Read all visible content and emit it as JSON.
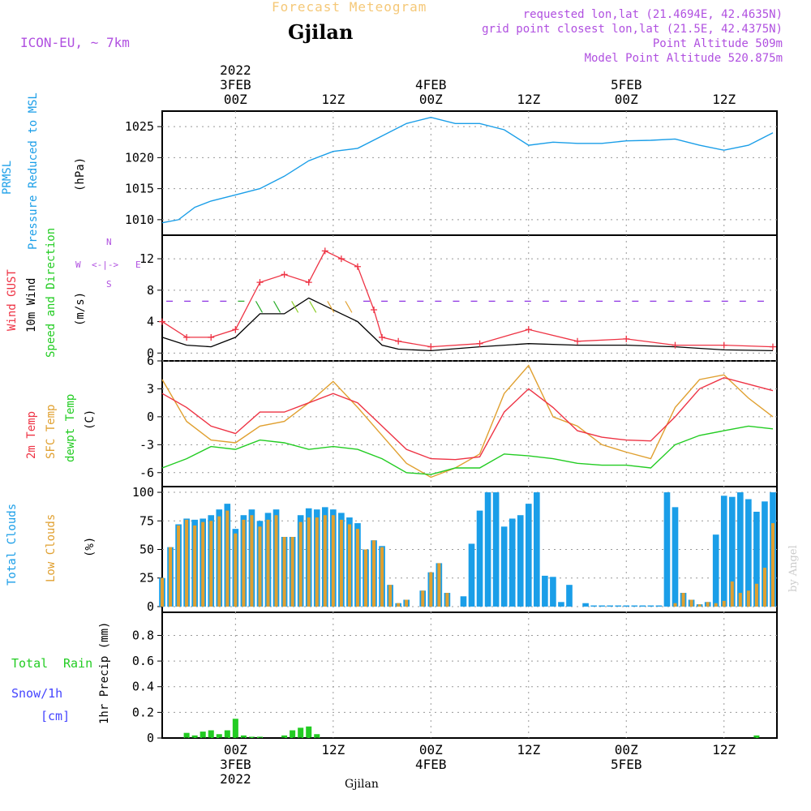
{
  "header": {
    "product": "Forecast Meteogram",
    "location": "Gjilan",
    "model": "ICON-EU, ~ 7km",
    "requested": "requested lon,lat (21.4694E, 42.4635N)",
    "gridpoint": "grid point closest lon,lat (21.5E, 42.4375N)",
    "point_alt": "Point Altitude 509m",
    "model_alt": "Model Point Altitude 520.875m"
  },
  "footer": {
    "location": "Gjilan",
    "credit": "by Angel"
  },
  "time_axis": {
    "top_ticks": [
      "00Z",
      "12Z",
      "00Z",
      "12Z",
      "00Z",
      "12Z"
    ],
    "top_dates": [
      "2022",
      "3FEB",
      "4FEB",
      "5FEB"
    ],
    "bottom_ticks": [
      "00Z",
      "12Z",
      "00Z",
      "12Z",
      "00Z",
      "12Z"
    ],
    "bottom_dates": [
      "3FEB",
      "2022",
      "4FEB",
      "5FEB"
    ]
  },
  "panel_labels": {
    "pressure": [
      "PRMSL",
      "Pressure Reduced to MSL",
      "(hPa)"
    ],
    "wind": [
      "Wind GUST",
      "10m Wind",
      "Speed and Direction",
      "(m/s)"
    ],
    "compass": {
      "n": "N",
      "s": "S",
      "w": "W",
      "e": "E",
      "arrows": "<-|->"
    },
    "temp": [
      "2m Temp",
      "SFC Temp",
      "dewpt Temp",
      "(C)"
    ],
    "clouds": [
      "Total Clouds",
      "Low Clouds",
      "(%)"
    ],
    "precip": [
      "Total",
      "Rain",
      "Snow/1h",
      "[cm]",
      "1hr Precip (mm)"
    ]
  },
  "colors": {
    "pressure": "#1a9ee8",
    "gust": "#ee3344",
    "wind": "#000000",
    "t2m": "#ee3344",
    "sfc": "#e0a030",
    "dew": "#22cc22",
    "total_clouds": "#1a9ee8",
    "low_clouds": "#e0a030",
    "rain": "#22cc22",
    "snow": "#4444ff",
    "header_gold": "#f5c878",
    "header_purple": "#b050e0"
  },
  "chart_data": [
    {
      "type": "line",
      "panel": "pressure",
      "units": "hPa",
      "x_hours": [
        -9,
        -7,
        -5,
        -3,
        0,
        3,
        6,
        9,
        12,
        15,
        18,
        21,
        24,
        27,
        30,
        33,
        36,
        39,
        42,
        45,
        48,
        51,
        54,
        57,
        60,
        63,
        66
      ],
      "y": [
        1009.5,
        1010,
        1012,
        1013,
        1014,
        1015,
        1017,
        1019.5,
        1021,
        1021.5,
        1023.5,
        1025.5,
        1026.5,
        1025.5,
        1025.5,
        1024.5,
        1022,
        1022.5,
        1022.3,
        1022.3,
        1022.7,
        1022.8,
        1023,
        1022,
        1021.2,
        1022,
        1024
      ],
      "ylim": [
        1007.5,
        1027.5
      ],
      "yticks": [
        1010,
        1015,
        1020,
        1025
      ]
    },
    {
      "type": "line",
      "panel": "wind",
      "units": "m/s",
      "x_hours": [
        -9,
        -6,
        -3,
        0,
        3,
        6,
        9,
        11,
        13,
        15,
        17,
        18,
        20,
        24,
        30,
        36,
        42,
        48,
        54,
        60,
        66
      ],
      "gust": [
        4,
        2,
        2,
        3,
        9,
        10,
        9,
        13,
        12,
        11,
        5.5,
        2,
        1.5,
        0.8,
        1.2,
        3,
        1.5,
        1.8,
        1,
        1,
        0.8
      ],
      "wind10m": [
        2,
        1,
        0.8,
        2,
        5,
        5,
        7,
        6,
        5,
        4,
        2,
        1,
        0.5,
        0.3,
        0.8,
        1.2,
        1,
        1,
        0.8,
        0.4,
        0.3
      ],
      "ylim": [
        -1,
        15
      ],
      "yticks": [
        0,
        4,
        8,
        12
      ]
    },
    {
      "type": "line",
      "panel": "temperature",
      "units": "C",
      "x_hours": [
        -9,
        -6,
        -3,
        0,
        3,
        6,
        9,
        12,
        15,
        18,
        21,
        24,
        27,
        30,
        33,
        36,
        39,
        42,
        45,
        48,
        51,
        54,
        57,
        60,
        63,
        66
      ],
      "t2m": [
        2.5,
        1,
        -1,
        -1.8,
        0.5,
        0.5,
        1.5,
        2.5,
        1.5,
        -1,
        -3.5,
        -4.5,
        -4.6,
        -4.3,
        0.5,
        3,
        1,
        -1.5,
        -2.2,
        -2.5,
        -2.6,
        0,
        3,
        4.2,
        3.5,
        2.8
      ],
      "sfc": [
        4,
        -0.5,
        -2.5,
        -2.8,
        -1,
        -0.5,
        1.5,
        3.8,
        1,
        -2,
        -5,
        -6.5,
        -5.5,
        -4,
        2.5,
        5.5,
        0,
        -1,
        -3,
        -3.8,
        -4.5,
        1,
        4,
        4.5,
        2,
        0
      ],
      "dew": [
        -5.5,
        -4.5,
        -3.2,
        -3.5,
        -2.5,
        -2.8,
        -3.5,
        -3.2,
        -3.5,
        -4.5,
        -6,
        -6.2,
        -5.5,
        -5.5,
        -4,
        -4.2,
        -4.5,
        -5,
        -5.2,
        -5.2,
        -5.5,
        -3,
        -2,
        -1.5,
        -1,
        -1.3
      ],
      "ylim": [
        -7.5,
        6
      ],
      "yticks": [
        -6,
        -3,
        0,
        3,
        6
      ]
    },
    {
      "type": "bar",
      "panel": "clouds",
      "units": "%",
      "x_hours": [
        -9,
        -8,
        -7,
        -6,
        -5,
        -4,
        -3,
        -2,
        -1,
        0,
        1,
        2,
        3,
        4,
        5,
        6,
        7,
        8,
        9,
        10,
        11,
        12,
        13,
        14,
        15,
        16,
        17,
        18,
        19,
        20,
        21,
        22,
        23,
        24,
        25,
        26,
        27,
        28,
        29,
        30,
        31,
        32,
        33,
        34,
        35,
        36,
        37,
        38,
        39,
        40,
        41,
        42,
        43,
        44,
        45,
        46,
        47,
        48,
        49,
        50,
        51,
        52,
        53,
        54,
        55,
        56,
        57,
        58,
        59,
        60,
        61,
        62,
        63,
        64,
        65,
        66
      ],
      "total": [
        25,
        52,
        72,
        77,
        76,
        77,
        80,
        85,
        90,
        68,
        80,
        85,
        75,
        82,
        85,
        61,
        61,
        80,
        86,
        85,
        87,
        85,
        82,
        78,
        73,
        50,
        58,
        53,
        19,
        3,
        6,
        0,
        14,
        30,
        38,
        12,
        0,
        9,
        55,
        84,
        100,
        100,
        70,
        77,
        80,
        90,
        100,
        27,
        26,
        4,
        19,
        0,
        3,
        1,
        1,
        1,
        1,
        1,
        1,
        1,
        1,
        1,
        100,
        87,
        12,
        6,
        2,
        4,
        63,
        97,
        96,
        100,
        94,
        83,
        92,
        100
      ],
      "low": [
        25,
        52,
        71,
        76,
        71,
        74,
        75,
        79,
        84,
        64,
        76,
        80,
        70,
        76,
        80,
        61,
        61,
        74,
        78,
        78,
        80,
        80,
        76,
        72,
        68,
        50,
        58,
        52,
        19,
        3,
        6,
        0,
        14,
        30,
        38,
        12,
        0,
        0,
        0,
        0,
        0,
        0,
        0,
        0,
        0,
        0,
        0,
        0,
        0,
        0,
        0,
        0,
        0,
        0,
        0,
        0,
        0,
        0,
        0,
        0,
        0,
        0,
        0,
        3,
        12,
        6,
        2,
        4,
        3,
        5,
        22,
        12,
        14,
        20,
        34,
        73
      ],
      "ylim": [
        -5,
        105
      ],
      "yticks": [
        0,
        25,
        50,
        75,
        100
      ]
    },
    {
      "type": "bar",
      "panel": "precipitation",
      "units": "mm",
      "x_hours": [
        -6,
        -5,
        -4,
        -3,
        -2,
        -1,
        0,
        1,
        2,
        3,
        6,
        7,
        8,
        9,
        10,
        64
      ],
      "rain": [
        0.04,
        0.02,
        0.05,
        0.06,
        0.03,
        0.06,
        0.15,
        0.02,
        0.01,
        0.01,
        0.02,
        0.06,
        0.08,
        0.09,
        0.03,
        0.02
      ],
      "ylim": [
        0,
        0.98
      ],
      "yticks": [
        0,
        0.2,
        0.4,
        0.6,
        0.8
      ]
    }
  ]
}
